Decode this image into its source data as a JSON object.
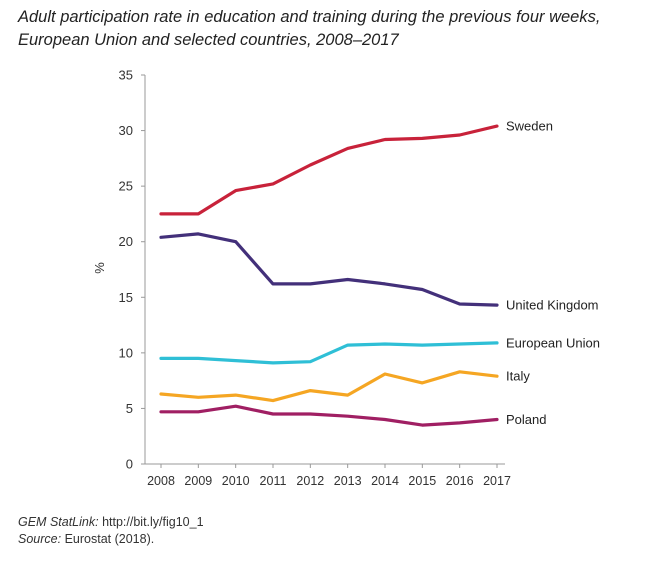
{
  "title_line1": "Adult participation rate in education and training during the previous four weeks,",
  "title_line2": "European Union and selected countries, 2008–2017",
  "footer": {
    "statlink_label": "GEM StatLink:",
    "statlink_url": "http://bit.ly/fig10_1",
    "source_label": "Source:",
    "source_text": "Eurostat (2018)."
  },
  "colors": {
    "sweden": "#c8223a",
    "united_kingdom": "#43307a",
    "european_union": "#2fbfd6",
    "italy": "#f5a623",
    "poland": "#a01f63"
  },
  "chart_data": {
    "type": "line",
    "title": "Adult participation rate in education and training during the previous four weeks, European Union and selected countries, 2008–2017",
    "xlabel": "",
    "ylabel": "%",
    "categories": [
      "2008",
      "2009",
      "2010",
      "2011",
      "2012",
      "2013",
      "2014",
      "2015",
      "2016",
      "2017"
    ],
    "yticks": [
      0,
      5,
      10,
      15,
      20,
      25,
      30,
      35
    ],
    "ylim": [
      0,
      35
    ],
    "grid": false,
    "legend": "labels at line ends",
    "series": [
      {
        "name": "Sweden",
        "values": [
          22.5,
          22.5,
          24.6,
          25.2,
          26.9,
          28.4,
          29.2,
          29.3,
          29.6,
          30.4
        ],
        "color": "#c8223a"
      },
      {
        "name": "United Kingdom",
        "values": [
          20.4,
          20.7,
          20.0,
          16.2,
          16.2,
          16.6,
          16.2,
          15.7,
          14.4,
          14.3
        ],
        "color": "#43307a"
      },
      {
        "name": "European Union",
        "values": [
          9.5,
          9.5,
          9.3,
          9.1,
          9.2,
          10.7,
          10.8,
          10.7,
          10.8,
          10.9
        ],
        "color": "#2fbfd6"
      },
      {
        "name": "Italy",
        "values": [
          6.3,
          6.0,
          6.2,
          5.7,
          6.6,
          6.2,
          8.1,
          7.3,
          8.3,
          7.9
        ],
        "color": "#f5a623"
      },
      {
        "name": "Poland",
        "values": [
          4.7,
          4.7,
          5.2,
          4.5,
          4.5,
          4.3,
          4.0,
          3.5,
          3.7,
          4.0
        ],
        "color": "#a01f63"
      }
    ]
  }
}
